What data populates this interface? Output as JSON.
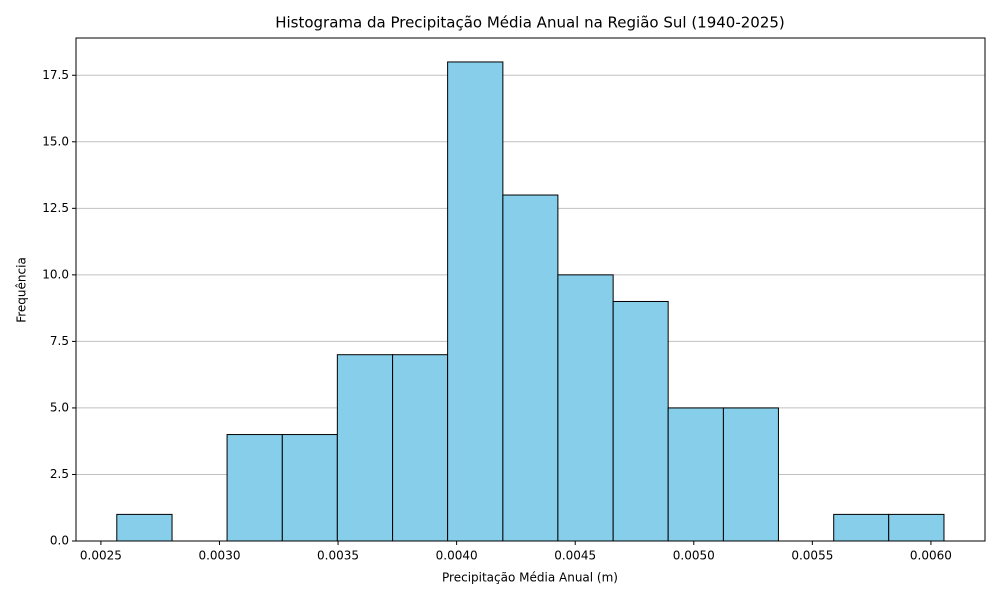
{
  "chart_data": {
    "type": "histogram",
    "title": "Histograma da Precipitação Média Anual na Região Sul (1940-2025)",
    "x_label": "Precipitação Média Anual (m)",
    "y_label": "Frequência",
    "bins": [
      0.002567,
      0.0028,
      0.003032,
      0.003265,
      0.003497,
      0.00373,
      0.003962,
      0.004195,
      0.004427,
      0.00466,
      0.004892,
      0.005125,
      0.005357,
      0.00559,
      0.005822,
      0.006055
    ],
    "values": [
      1,
      0,
      4,
      4,
      7,
      7,
      18,
      13,
      10,
      9,
      5,
      5,
      0,
      1,
      1
    ],
    "color": "#87ceeb",
    "edgecolor": "#000000",
    "xlim": [
      0.002395,
      0.006228
    ],
    "ylim": [
      0,
      18.9
    ],
    "xticks": [
      0.0025,
      {
        "value": 0.003,
        "label": "0.0030"
      },
      0.0035,
      {
        "value": 0.004,
        "label": "0.0040"
      },
      0.0045,
      {
        "value": 0.005,
        "label": "0.0050"
      },
      0.0055,
      {
        "value": 0.006,
        "label": "0.0060"
      }
    ],
    "yticks": [
      {
        "value": 0,
        "label": "0.0"
      },
      2.5,
      {
        "value": 5,
        "label": "5.0"
      },
      7.5,
      {
        "value": 10,
        "label": "10.0"
      },
      12.5,
      {
        "value": 15,
        "label": "15.0"
      },
      17.5
    ],
    "grid": "y"
  }
}
